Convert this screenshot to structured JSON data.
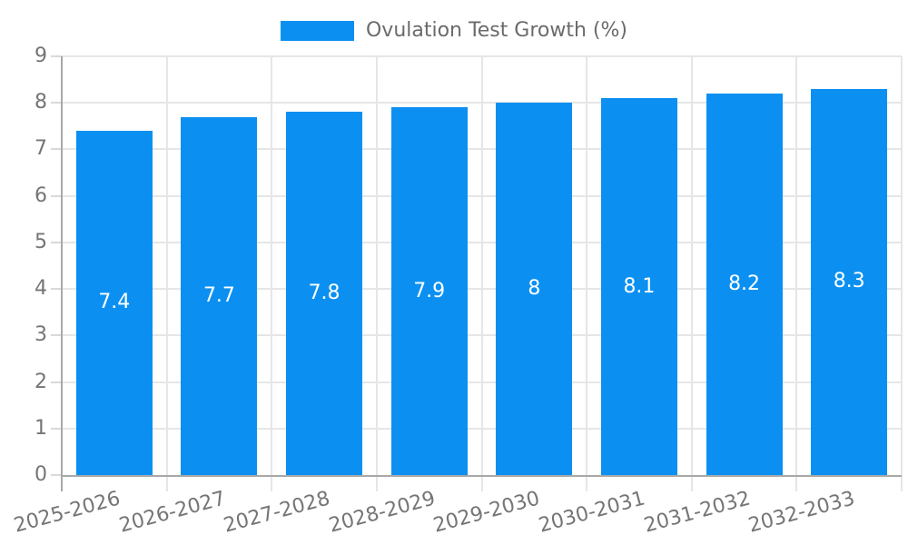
{
  "chart_data": {
    "type": "bar",
    "title": "",
    "legend": [
      "Ovulation Test Growth (%)"
    ],
    "legend_position": "top",
    "categories": [
      "2025-2026",
      "2026-2027",
      "2027-2028",
      "2028-2029",
      "2029-2030",
      "2030-2031",
      "2031-2032",
      "2032-2033"
    ],
    "series": [
      {
        "name": "Ovulation Test Growth (%)",
        "values": [
          7.4,
          7.7,
          7.8,
          7.9,
          8,
          8.1,
          8.2,
          8.3
        ]
      }
    ],
    "value_labels": [
      "7.4",
      "7.7",
      "7.8",
      "7.9",
      "8",
      "8.1",
      "8.2",
      "8.3"
    ],
    "value_labels_position": "inside-center",
    "xlabel": "",
    "ylabel": "",
    "ylim": [
      0,
      9
    ],
    "y_ticks": [
      0,
      1,
      2,
      3,
      4,
      5,
      6,
      7,
      8,
      9
    ],
    "grid": true,
    "x_tick_rotation_deg": -15,
    "colors": {
      "bar": "#0b90f2",
      "grid_line": "#e6e6e6",
      "tick_mark": "#d9d9d9",
      "axis_line": "#a8a8a8",
      "tick_label": "#757575",
      "legend_text": "#6b6b6b",
      "value_label": "#ffffff",
      "background": "#ffffff"
    }
  }
}
